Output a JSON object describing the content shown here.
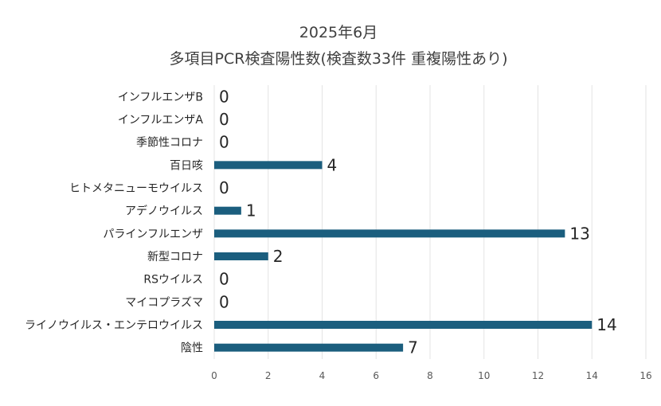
{
  "chart_data": {
    "type": "bar",
    "orientation": "horizontal",
    "title": "2025年6月",
    "subtitle": "多項目PCR検査陽性数(検査数33件 重複陽性あり)",
    "categories": [
      "インフルエンザB",
      "インフルエンザA",
      "季節性コロナ",
      "百日咳",
      "ヒトメタニューモウイルス",
      "アデノウイルス",
      "パラインフルエンザ",
      "新型コロナ",
      "RSウイルス",
      "マイコプラズマ",
      "ライノウイルス・エンテロウイルス",
      "陰性"
    ],
    "values": [
      0,
      0,
      0,
      4,
      0,
      1,
      13,
      2,
      0,
      0,
      14,
      7
    ],
    "xlim": [
      0,
      16
    ],
    "xticks": [
      0,
      2,
      4,
      6,
      8,
      10,
      12,
      14,
      16
    ],
    "xlabel": "",
    "ylabel": "",
    "grid": "vertical",
    "data_labels": true,
    "bar_color": "#1b5e7e"
  }
}
